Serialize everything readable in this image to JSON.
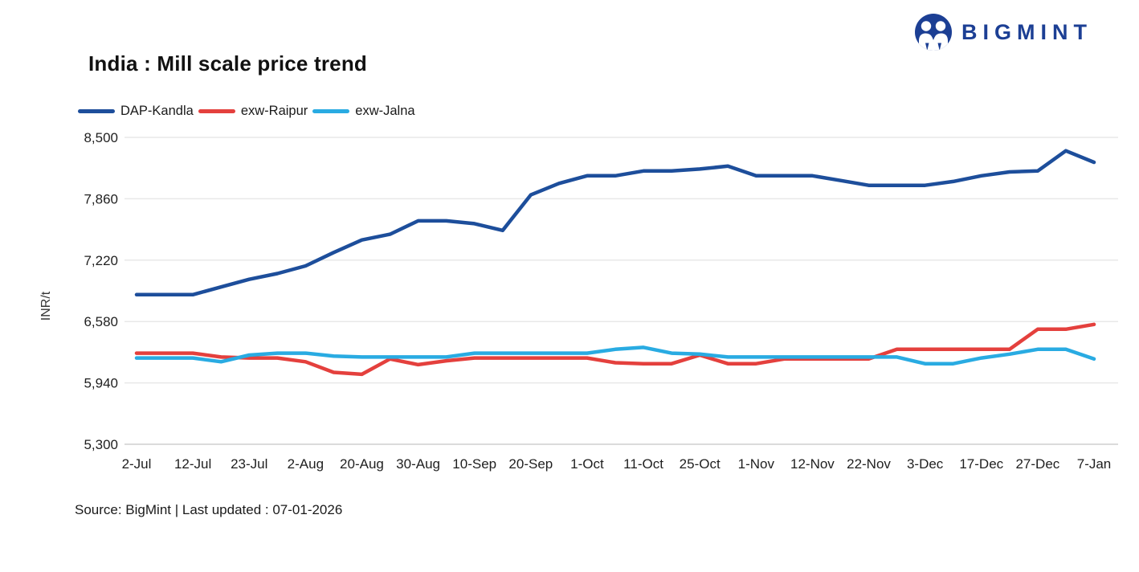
{
  "header": {
    "title": "India : Mill scale price trend",
    "brand": "BIGMINT"
  },
  "footer": {
    "source": "Source: BigMint | Last updated : 07-01-2026"
  },
  "chart_data": {
    "type": "line",
    "title": "India : Mill scale price trend",
    "xlabel": "",
    "ylabel": "INR/t",
    "ylim": [
      5300,
      8500
    ],
    "grid": true,
    "legend_position": "top-left",
    "colors": {
      "grid": "#e8e8e8",
      "baseline": "#cfcfcf",
      "tick_text": "#1f1f1f",
      "brand": "#1c3f94"
    },
    "y_ticks": [
      8500,
      7860,
      7220,
      6580,
      5940,
      5300
    ],
    "y_tick_labels": [
      "8,500",
      "7,860",
      "7,220",
      "6,580",
      "5,940",
      "5,300"
    ],
    "x_tick_labels": [
      "2-Jul",
      "12-Jul",
      "23-Jul",
      "2-Aug",
      "20-Aug",
      "30-Aug",
      "10-Sep",
      "20-Sep",
      "1-Oct",
      "11-Oct",
      "25-Oct",
      "1-Nov",
      "12-Nov",
      "22-Nov",
      "3-Dec",
      "17-Dec",
      "27-Dec",
      "7-Jan"
    ],
    "points_per_label": 2,
    "series": [
      {
        "name": "DAP-Kandla",
        "color": "#1d4e9b",
        "values": [
          6860,
          6860,
          6860,
          6940,
          7020,
          7080,
          7160,
          7300,
          7430,
          7490,
          7630,
          7630,
          7600,
          7530,
          7900,
          8020,
          8100,
          8100,
          8150,
          8150,
          8170,
          8200,
          8100,
          8100,
          8100,
          8050,
          8000,
          8000,
          8000,
          8040,
          8100,
          8140,
          8150,
          8360,
          8240
        ]
      },
      {
        "name": "exw-Raipur",
        "color": "#e4403d",
        "values": [
          6250,
          6250,
          6250,
          6210,
          6200,
          6200,
          6160,
          6050,
          6030,
          6190,
          6130,
          6170,
          6200,
          6200,
          6200,
          6200,
          6200,
          6150,
          6140,
          6140,
          6230,
          6140,
          6140,
          6190,
          6190,
          6190,
          6190,
          6290,
          6290,
          6290,
          6290,
          6290,
          6500,
          6500,
          6550
        ]
      },
      {
        "name": "exw-Jalna",
        "color": "#29abe2",
        "values": [
          6200,
          6200,
          6200,
          6160,
          6230,
          6250,
          6250,
          6220,
          6210,
          6210,
          6210,
          6210,
          6250,
          6250,
          6250,
          6250,
          6250,
          6290,
          6310,
          6250,
          6240,
          6210,
          6210,
          6210,
          6210,
          6210,
          6210,
          6210,
          6140,
          6140,
          6200,
          6240,
          6290,
          6290,
          6190
        ]
      }
    ]
  }
}
